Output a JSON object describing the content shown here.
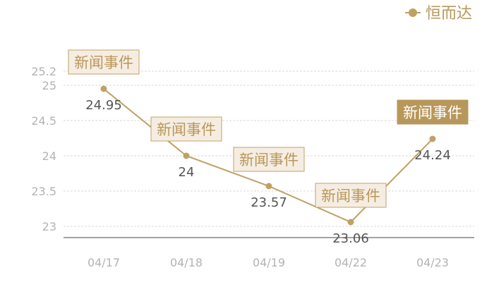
{
  "chart_data": {
    "type": "line",
    "categories": [
      "04/17",
      "04/18",
      "04/19",
      "04/22",
      "04/23"
    ],
    "series": [
      {
        "name": "恒而达",
        "values": [
          24.95,
          24,
          23.57,
          23.06,
          24.24
        ]
      }
    ],
    "value_labels": [
      "24.95",
      "24",
      "23.57",
      "23.06",
      "24.24"
    ],
    "yticks": [
      23,
      23.5,
      24,
      24.5,
      25,
      25.2
    ],
    "ylim": [
      22.85,
      25.25
    ],
    "grid": true,
    "grid_style": "dashed",
    "legend_position": "top-right",
    "event_tags": [
      {
        "category_index": 0,
        "text": "新闻事件",
        "highlighted": false
      },
      {
        "category_index": 1,
        "text": "新闻事件",
        "highlighted": false
      },
      {
        "category_index": 2,
        "text": "新闻事件",
        "highlighted": false
      },
      {
        "category_index": 3,
        "text": "新闻事件",
        "highlighted": false
      },
      {
        "category_index": 4,
        "text": "新闻事件",
        "highlighted": true
      }
    ],
    "colors": {
      "line": "#c0a164",
      "marker": "#c0a164",
      "tag_fill": "#f6ede2",
      "tag_border": "#c0a164",
      "tag_text": "#b8975a",
      "tag_highlight_fill": "#b8975a",
      "tag_highlight_text": "#ffffff",
      "grid": "#d9d9d9",
      "axis": "#444444"
    }
  }
}
